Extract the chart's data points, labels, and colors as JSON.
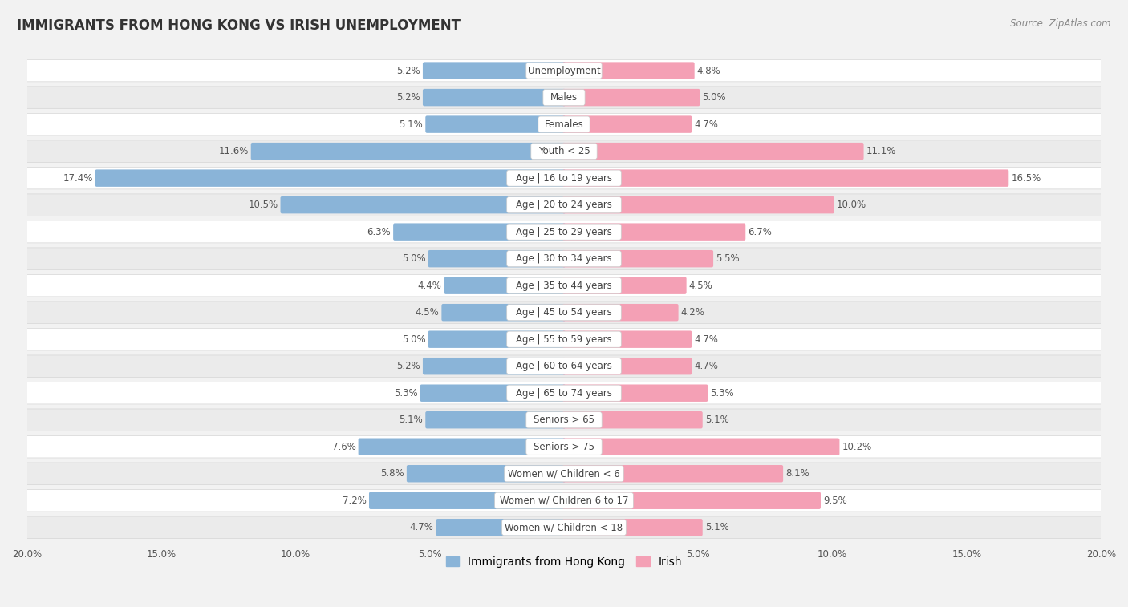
{
  "title": "IMMIGRANTS FROM HONG KONG VS IRISH UNEMPLOYMENT",
  "source": "Source: ZipAtlas.com",
  "categories": [
    "Unemployment",
    "Males",
    "Females",
    "Youth < 25",
    "Age | 16 to 19 years",
    "Age | 20 to 24 years",
    "Age | 25 to 29 years",
    "Age | 30 to 34 years",
    "Age | 35 to 44 years",
    "Age | 45 to 54 years",
    "Age | 55 to 59 years",
    "Age | 60 to 64 years",
    "Age | 65 to 74 years",
    "Seniors > 65",
    "Seniors > 75",
    "Women w/ Children < 6",
    "Women w/ Children 6 to 17",
    "Women w/ Children < 18"
  ],
  "hk_values": [
    5.2,
    5.2,
    5.1,
    11.6,
    17.4,
    10.5,
    6.3,
    5.0,
    4.4,
    4.5,
    5.0,
    5.2,
    5.3,
    5.1,
    7.6,
    5.8,
    7.2,
    4.7
  ],
  "irish_values": [
    4.8,
    5.0,
    4.7,
    11.1,
    16.5,
    10.0,
    6.7,
    5.5,
    4.5,
    4.2,
    4.7,
    4.7,
    5.3,
    5.1,
    10.2,
    8.1,
    9.5,
    5.1
  ],
  "hk_color": "#8ab4d8",
  "irish_color": "#f4a0b5",
  "hk_label": "Immigrants from Hong Kong",
  "irish_label": "Irish",
  "axis_max": 20.0,
  "bg_color": "#f2f2f2",
  "row_bg_white": "#ffffff",
  "row_bg_gray": "#ebebeb",
  "row_border": "#d5d5d5",
  "title_fontsize": 12,
  "label_fontsize": 8.5,
  "value_fontsize": 8.5,
  "legend_fontsize": 10,
  "cat_label_fontsize": 8.5,
  "tick_fontsize": 8.5
}
